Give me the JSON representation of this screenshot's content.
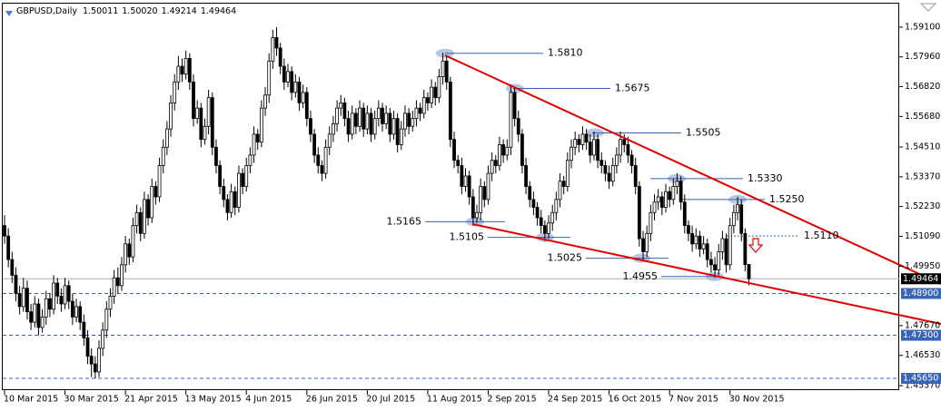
{
  "chart_data": {
    "type": "candlestick",
    "symbol": "GBPUSD,Daily",
    "last_labels": [
      "1.50011",
      "1.50020",
      "1.49214",
      "1.49464"
    ],
    "categories": [
      "10 Mar 2015",
      null,
      null,
      null,
      null,
      null,
      null,
      null,
      null,
      null,
      null,
      null,
      null,
      null,
      null,
      null,
      "30 Mar 2015",
      null,
      null,
      null,
      null,
      null,
      null,
      null,
      null,
      null,
      null,
      null,
      null,
      null,
      null,
      null,
      "21 Apr 2015",
      null,
      null,
      null,
      null,
      null,
      null,
      null,
      null,
      null,
      null,
      null,
      null,
      null,
      null,
      null,
      "13 May 2015",
      null,
      null,
      null,
      null,
      null,
      null,
      null,
      null,
      null,
      null,
      null,
      null,
      null,
      null,
      null,
      "4 Jun 2015",
      null,
      null,
      null,
      null,
      null,
      null,
      null,
      null,
      null,
      null,
      null,
      null,
      null,
      null,
      null,
      "26 Jun 2015",
      null,
      null,
      null,
      null,
      null,
      null,
      null,
      null,
      null,
      null,
      null,
      null,
      null,
      null,
      null,
      "20 Jul 2015",
      null,
      null,
      null,
      null,
      null,
      null,
      null,
      null,
      null,
      null,
      null,
      null,
      null,
      null,
      null,
      "11 Aug 2015",
      null,
      null,
      null,
      null,
      null,
      null,
      null,
      null,
      null,
      null,
      null,
      null,
      null,
      null,
      null,
      "2 Sep 2015",
      null,
      null,
      null,
      null,
      null,
      null,
      null,
      null,
      null,
      null,
      null,
      null,
      null,
      null,
      null,
      "24 Sep 2015",
      null,
      null,
      null,
      null,
      null,
      null,
      null,
      null,
      null,
      null,
      null,
      null,
      null,
      null,
      null,
      "16 Oct 2015",
      null,
      null,
      null,
      null,
      null,
      null,
      null,
      null,
      null,
      null,
      null,
      null,
      null,
      null,
      null,
      "7 Nov 2015",
      null,
      null,
      null,
      null,
      null,
      null,
      null,
      null,
      null,
      null,
      null,
      null,
      null,
      null,
      null,
      "30 Nov 2015",
      null,
      null,
      null,
      null,
      null
    ],
    "open": [
      1.515,
      1.511,
      1.502,
      1.496,
      1.489,
      1.484,
      1.491,
      1.482,
      1.478,
      1.485,
      1.476,
      1.48,
      1.487,
      1.483,
      1.493,
      1.488,
      1.485,
      1.492,
      1.486,
      1.48,
      1.484,
      1.478,
      1.472,
      1.465,
      1.462,
      1.459,
      1.468,
      1.475,
      1.483,
      1.488,
      1.495,
      1.492,
      1.5,
      1.508,
      1.503,
      1.515,
      1.52,
      1.512,
      1.525,
      1.518,
      1.53,
      1.526,
      1.538,
      1.545,
      1.552,
      1.562,
      1.57,
      1.576,
      1.573,
      1.579,
      1.57,
      1.556,
      1.56,
      1.548,
      1.553,
      1.564,
      1.545,
      1.538,
      1.53,
      1.525,
      1.52,
      1.528,
      1.522,
      1.535,
      1.53,
      1.538,
      1.542,
      1.55,
      1.547,
      1.56,
      1.565,
      1.578,
      1.587,
      1.583,
      1.576,
      1.57,
      1.574,
      1.566,
      1.57,
      1.562,
      1.566,
      1.556,
      1.55,
      1.542,
      1.538,
      1.535,
      1.545,
      1.55,
      1.554,
      1.56,
      1.562,
      1.556,
      1.55,
      1.558,
      1.553,
      1.56,
      1.552,
      1.558,
      1.55,
      1.556,
      1.56,
      1.554,
      1.558,
      1.55,
      1.556,
      1.546,
      1.552,
      1.558,
      1.553,
      1.556,
      1.56,
      1.558,
      1.564,
      1.562,
      1.568,
      1.564,
      1.572,
      1.578,
      1.57,
      1.548,
      1.54,
      1.538,
      1.53,
      1.534,
      1.526,
      1.518,
      1.52,
      1.53,
      1.525,
      1.535,
      1.54,
      1.538,
      1.546,
      1.542,
      1.545,
      1.566,
      1.556,
      1.55,
      1.538,
      1.53,
      1.525,
      1.522,
      1.518,
      1.515,
      1.512,
      1.516,
      1.52,
      1.525,
      1.532,
      1.53,
      1.54,
      1.545,
      1.548,
      1.546,
      1.55,
      1.547,
      1.542,
      1.548,
      1.54,
      1.538,
      1.535,
      1.532,
      1.538,
      1.542,
      1.548,
      1.546,
      1.542,
      1.538,
      1.53,
      1.51,
      1.505,
      1.512,
      1.52,
      1.524,
      1.526,
      1.522,
      1.528,
      1.525,
      1.53,
      1.532,
      1.524,
      1.515,
      1.512,
      1.508,
      1.511,
      1.506,
      1.508,
      1.502,
      1.5,
      1.498,
      1.505,
      1.51,
      1.5,
      1.515,
      1.52,
      1.523,
      1.512,
      1.50011
    ],
    "high": [
      1.519,
      1.514,
      1.505,
      1.499,
      1.492,
      1.495,
      1.494,
      1.485,
      1.488,
      1.487,
      1.483,
      1.49,
      1.489,
      1.496,
      1.495,
      1.491,
      1.495,
      1.494,
      1.489,
      1.487,
      1.486,
      1.481,
      1.475,
      1.468,
      1.465,
      1.471,
      1.478,
      1.486,
      1.491,
      1.498,
      1.499,
      1.503,
      1.511,
      1.51,
      1.518,
      1.523,
      1.522,
      1.528,
      1.527,
      1.533,
      1.532,
      1.541,
      1.548,
      1.555,
      1.565,
      1.573,
      1.58,
      1.579,
      1.582,
      1.581,
      1.573,
      1.563,
      1.562,
      1.556,
      1.567,
      1.566,
      1.548,
      1.54,
      1.533,
      1.527,
      1.531,
      1.53,
      1.538,
      1.537,
      1.541,
      1.545,
      1.553,
      1.552,
      1.563,
      1.568,
      1.581,
      1.59,
      1.591,
      1.585,
      1.579,
      1.577,
      1.576,
      1.573,
      1.572,
      1.569,
      1.568,
      1.559,
      1.552,
      1.545,
      1.54,
      1.548,
      1.553,
      1.557,
      1.563,
      1.565,
      1.564,
      1.559,
      1.561,
      1.56,
      1.563,
      1.562,
      1.561,
      1.56,
      1.559,
      1.563,
      1.562,
      1.561,
      1.56,
      1.559,
      1.558,
      1.555,
      1.561,
      1.56,
      1.559,
      1.563,
      1.562,
      1.567,
      1.566,
      1.571,
      1.57,
      1.575,
      1.5812,
      1.58,
      1.572,
      1.551,
      1.542,
      1.541,
      1.537,
      1.536,
      1.529,
      1.523,
      1.533,
      1.532,
      1.538,
      1.543,
      1.542,
      1.549,
      1.548,
      1.548,
      1.569,
      1.568,
      1.559,
      1.552,
      1.541,
      1.532,
      1.528,
      1.524,
      1.521,
      1.517,
      1.519,
      1.523,
      1.528,
      1.535,
      1.534,
      1.543,
      1.548,
      1.551,
      1.55,
      1.553,
      1.552,
      1.55,
      1.551,
      1.55,
      1.543,
      1.54,
      1.538,
      1.541,
      1.545,
      1.551,
      1.55,
      1.549,
      1.544,
      1.541,
      1.532,
      1.513,
      1.515,
      1.523,
      1.527,
      1.529,
      1.528,
      1.531,
      1.53,
      1.533,
      1.535,
      1.534,
      1.527,
      1.517,
      1.515,
      1.514,
      1.513,
      1.511,
      1.51,
      1.505,
      1.503,
      1.508,
      1.513,
      1.512,
      1.518,
      1.523,
      1.526,
      1.525,
      1.514,
      1.5002
    ],
    "low": [
      1.508,
      1.499,
      1.493,
      1.486,
      1.481,
      1.482,
      1.479,
      1.475,
      1.476,
      1.473,
      1.474,
      1.477,
      1.48,
      1.481,
      1.485,
      1.482,
      1.483,
      1.483,
      1.477,
      1.478,
      1.475,
      1.469,
      1.462,
      1.457,
      1.4565,
      1.457,
      1.465,
      1.472,
      1.48,
      1.485,
      1.489,
      1.49,
      1.497,
      1.5,
      1.501,
      1.512,
      1.509,
      1.51,
      1.515,
      1.516,
      1.523,
      1.524,
      1.535,
      1.542,
      1.549,
      1.559,
      1.567,
      1.57,
      1.571,
      1.567,
      1.553,
      1.554,
      1.545,
      1.546,
      1.55,
      1.542,
      1.535,
      1.527,
      1.522,
      1.517,
      1.518,
      1.519,
      1.52,
      1.527,
      1.528,
      1.535,
      1.539,
      1.544,
      1.545,
      1.557,
      1.562,
      1.575,
      1.58,
      1.573,
      1.567,
      1.568,
      1.563,
      1.564,
      1.559,
      1.56,
      1.553,
      1.547,
      1.539,
      1.535,
      1.532,
      1.533,
      1.542,
      1.547,
      1.551,
      1.557,
      1.553,
      1.547,
      1.548,
      1.55,
      1.551,
      1.549,
      1.55,
      1.547,
      1.548,
      1.553,
      1.551,
      1.552,
      1.547,
      1.548,
      1.543,
      1.544,
      1.549,
      1.55,
      1.551,
      1.553,
      1.555,
      1.556,
      1.559,
      1.56,
      1.561,
      1.562,
      1.569,
      1.567,
      1.545,
      1.537,
      1.535,
      1.527,
      1.528,
      1.523,
      1.515,
      1.516,
      1.517,
      1.522,
      1.523,
      1.532,
      1.535,
      1.536,
      1.539,
      1.54,
      1.542,
      1.553,
      1.547,
      1.535,
      1.527,
      1.522,
      1.519,
      1.515,
      1.512,
      1.509,
      1.51,
      1.513,
      1.517,
      1.522,
      1.527,
      1.528,
      1.537,
      1.542,
      1.543,
      1.544,
      1.544,
      1.539,
      1.54,
      1.537,
      1.535,
      1.532,
      1.529,
      1.53,
      1.535,
      1.539,
      1.543,
      1.539,
      1.535,
      1.527,
      1.507,
      1.502,
      1.503,
      1.509,
      1.517,
      1.521,
      1.519,
      1.52,
      1.522,
      1.523,
      1.527,
      1.521,
      1.512,
      1.509,
      1.505,
      1.506,
      1.503,
      1.504,
      1.499,
      1.497,
      1.495,
      1.496,
      1.502,
      1.497,
      1.498,
      1.512,
      1.517,
      1.509,
      1.4975,
      1.49214
    ],
    "close": [
      1.511,
      1.502,
      1.496,
      1.489,
      1.484,
      1.491,
      1.482,
      1.478,
      1.485,
      1.476,
      1.48,
      1.487,
      1.483,
      1.493,
      1.488,
      1.485,
      1.492,
      1.486,
      1.48,
      1.484,
      1.478,
      1.472,
      1.465,
      1.462,
      1.459,
      1.468,
      1.475,
      1.483,
      1.488,
      1.495,
      1.492,
      1.5,
      1.508,
      1.503,
      1.515,
      1.52,
      1.512,
      1.525,
      1.518,
      1.53,
      1.526,
      1.538,
      1.545,
      1.552,
      1.562,
      1.57,
      1.576,
      1.573,
      1.579,
      1.57,
      1.556,
      1.56,
      1.548,
      1.553,
      1.564,
      1.545,
      1.538,
      1.53,
      1.525,
      1.52,
      1.528,
      1.522,
      1.535,
      1.53,
      1.538,
      1.542,
      1.55,
      1.547,
      1.56,
      1.565,
      1.578,
      1.587,
      1.583,
      1.576,
      1.57,
      1.574,
      1.566,
      1.57,
      1.562,
      1.566,
      1.556,
      1.55,
      1.542,
      1.538,
      1.535,
      1.545,
      1.55,
      1.554,
      1.56,
      1.562,
      1.556,
      1.55,
      1.558,
      1.553,
      1.56,
      1.552,
      1.558,
      1.55,
      1.556,
      1.56,
      1.554,
      1.558,
      1.55,
      1.556,
      1.546,
      1.552,
      1.558,
      1.553,
      1.556,
      1.56,
      1.558,
      1.564,
      1.562,
      1.568,
      1.564,
      1.572,
      1.578,
      1.57,
      1.548,
      1.54,
      1.538,
      1.53,
      1.534,
      1.526,
      1.518,
      1.52,
      1.53,
      1.525,
      1.535,
      1.54,
      1.538,
      1.546,
      1.542,
      1.545,
      1.566,
      1.556,
      1.55,
      1.538,
      1.53,
      1.525,
      1.522,
      1.518,
      1.515,
      1.512,
      1.516,
      1.52,
      1.525,
      1.532,
      1.53,
      1.54,
      1.545,
      1.548,
      1.546,
      1.55,
      1.547,
      1.542,
      1.548,
      1.54,
      1.538,
      1.535,
      1.532,
      1.538,
      1.542,
      1.548,
      1.546,
      1.542,
      1.538,
      1.53,
      1.51,
      1.505,
      1.512,
      1.52,
      1.524,
      1.526,
      1.522,
      1.528,
      1.525,
      1.53,
      1.532,
      1.524,
      1.515,
      1.512,
      1.508,
      1.511,
      1.506,
      1.508,
      1.502,
      1.5,
      1.498,
      1.505,
      1.51,
      1.5,
      1.515,
      1.52,
      1.523,
      1.512,
      1.5001,
      1.49464
    ],
    "up_color": "#ffffff",
    "down_color": "#000000",
    "ylim": [
      1.452,
      1.6
    ],
    "yticks": [
      {
        "value": 1.591,
        "label": "1.59100"
      },
      {
        "value": 1.5796,
        "label": "1.57960"
      },
      {
        "value": 1.5682,
        "label": "1.56820"
      },
      {
        "value": 1.5568,
        "label": "1.55680"
      },
      {
        "value": 1.5451,
        "label": "1.54510"
      },
      {
        "value": 1.5337,
        "label": "1.53370"
      },
      {
        "value": 1.5223,
        "label": "1.52230"
      },
      {
        "value": 1.5109,
        "label": "1.51090"
      },
      {
        "value": 1.4995,
        "label": "1.49950"
      },
      {
        "value": 1.4767,
        "label": "1.47670"
      },
      {
        "value": 1.4653,
        "label": "1.46530"
      },
      {
        "value": 1.4537,
        "label": "1.45370"
      }
    ],
    "price_lines": [
      {
        "value": 1.489,
        "label": "1.48900"
      },
      {
        "value": 1.473,
        "label": "1.47300"
      },
      {
        "value": 1.4565,
        "label": "1.45650"
      }
    ],
    "price_line_color": "#3a64b4",
    "levels": [
      {
        "value": 1.581,
        "label": "1.5810"
      },
      {
        "value": 1.5675,
        "label": "1.5675"
      },
      {
        "value": 1.5505,
        "label": "1.5505"
      },
      {
        "value": 1.533,
        "label": "1.5330"
      },
      {
        "value": 1.525,
        "label": "1.5250"
      },
      {
        "value": 1.5165,
        "label": "1.5165"
      },
      {
        "value": 1.5105,
        "label": "1.5105"
      },
      {
        "value": 1.5025,
        "label": "1.5025"
      },
      {
        "value": 1.4955,
        "label": "1.4955"
      },
      {
        "value": 1.511,
        "label": "1.5110"
      }
    ],
    "level_color": "#3a64b4",
    "trend_color": "#e00000"
  }
}
